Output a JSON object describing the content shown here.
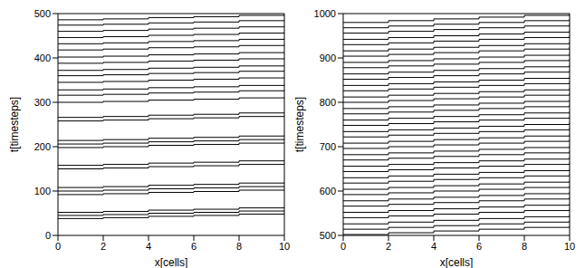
{
  "chart_data": [
    {
      "type": "line",
      "x_label": "x[cells]",
      "y_label": "t[timesteps]",
      "color": "#000000",
      "line_style": "step",
      "x": [
        0,
        2,
        4,
        6,
        8,
        10
      ],
      "xlim": [
        0,
        10
      ],
      "xticks": [
        0,
        2,
        4,
        6,
        8,
        10
      ],
      "ylim": [
        0,
        500
      ],
      "yticks": [
        0,
        100,
        200,
        300,
        400,
        500
      ],
      "series": [
        {
          "values": [
            38,
            40,
            43,
            45,
            48,
            50
          ]
        },
        {
          "values": [
            45,
            47,
            50,
            52,
            55,
            57
          ]
        },
        {
          "values": [
            52,
            54,
            57,
            59,
            62,
            64
          ]
        },
        {
          "values": [
            92,
            94,
            97,
            99,
            102,
            104
          ]
        },
        {
          "values": [
            100,
            102,
            105,
            107,
            110,
            112
          ]
        },
        {
          "values": [
            108,
            110,
            113,
            115,
            118,
            120
          ]
        },
        {
          "values": [
            150,
            152,
            155,
            157,
            160,
            162
          ]
        },
        {
          "values": [
            158,
            160,
            163,
            165,
            168,
            170
          ]
        },
        {
          "values": [
            198,
            200,
            203,
            205,
            208,
            210
          ]
        },
        {
          "values": [
            206,
            208,
            211,
            213,
            216,
            218
          ]
        },
        {
          "values": [
            214,
            216,
            219,
            221,
            224,
            226
          ]
        },
        {
          "values": [
            258,
            260,
            263,
            265,
            268,
            270
          ]
        },
        {
          "values": [
            266,
            268,
            271,
            273,
            276,
            278
          ]
        },
        {
          "values": [
            300,
            302,
            305,
            307,
            310,
            312
          ]
        },
        {
          "values": [
            316,
            318,
            321,
            323,
            326,
            328
          ]
        },
        {
          "values": [
            328,
            330,
            333,
            335,
            338,
            340
          ]
        },
        {
          "values": [
            345,
            347,
            350,
            352,
            355,
            357
          ]
        },
        {
          "values": [
            360,
            362,
            365,
            367,
            370,
            372
          ]
        },
        {
          "values": [
            372,
            374,
            377,
            379,
            382,
            384
          ]
        },
        {
          "values": [
            388,
            390,
            393,
            395,
            398,
            400
          ]
        },
        {
          "values": [
            402,
            404,
            407,
            409,
            412,
            414
          ]
        },
        {
          "values": [
            418,
            420,
            423,
            425,
            428,
            430
          ]
        },
        {
          "values": [
            432,
            434,
            437,
            439,
            442,
            444
          ]
        },
        {
          "values": [
            446,
            448,
            451,
            453,
            456,
            458
          ]
        },
        {
          "values": [
            460,
            462,
            465,
            467,
            470,
            472
          ]
        },
        {
          "values": [
            474,
            476,
            479,
            481,
            484,
            486
          ]
        },
        {
          "values": [
            486,
            488,
            491,
            493,
            496,
            498
          ]
        }
      ]
    },
    {
      "type": "line",
      "x_label": "x[cells]",
      "y_label": "t[timesteps]",
      "color": "#000000",
      "line_style": "step",
      "x": [
        0,
        2,
        4,
        6,
        8,
        10
      ],
      "xlim": [
        0,
        10
      ],
      "xticks": [
        0,
        2,
        4,
        6,
        8,
        10
      ],
      "ylim": [
        500,
        1000
      ],
      "yticks": [
        500,
        600,
        700,
        800,
        900,
        1000
      ],
      "series": [
        {
          "values": [
            502,
            506,
            510,
            514,
            518,
            522
          ]
        },
        {
          "values": [
            514,
            518,
            522,
            526,
            530,
            534
          ]
        },
        {
          "values": [
            526,
            530,
            534,
            538,
            542,
            546
          ]
        },
        {
          "values": [
            540,
            544,
            548,
            552,
            556,
            560
          ]
        },
        {
          "values": [
            552,
            556,
            560,
            564,
            568,
            572
          ]
        },
        {
          "values": [
            566,
            570,
            574,
            578,
            582,
            586
          ]
        },
        {
          "values": [
            578,
            582,
            586,
            590,
            594,
            598
          ]
        },
        {
          "values": [
            592,
            596,
            600,
            604,
            608,
            612
          ]
        },
        {
          "values": [
            604,
            608,
            612,
            616,
            620,
            624
          ]
        },
        {
          "values": [
            618,
            622,
            626,
            630,
            634,
            638
          ]
        },
        {
          "values": [
            630,
            634,
            638,
            642,
            646,
            650
          ]
        },
        {
          "values": [
            644,
            648,
            652,
            656,
            660,
            664
          ]
        },
        {
          "values": [
            656,
            660,
            664,
            668,
            672,
            676
          ]
        },
        {
          "values": [
            670,
            674,
            678,
            682,
            686,
            690
          ]
        },
        {
          "values": [
            682,
            686,
            690,
            694,
            698,
            702
          ]
        },
        {
          "values": [
            696,
            700,
            704,
            708,
            712,
            716
          ]
        },
        {
          "values": [
            708,
            712,
            716,
            720,
            724,
            728
          ]
        },
        {
          "values": [
            722,
            726,
            730,
            734,
            738,
            742
          ]
        },
        {
          "values": [
            734,
            738,
            742,
            746,
            750,
            754
          ]
        },
        {
          "values": [
            748,
            752,
            756,
            760,
            764,
            768
          ]
        },
        {
          "values": [
            760,
            764,
            768,
            772,
            776,
            780
          ]
        },
        {
          "values": [
            774,
            778,
            782,
            786,
            790,
            794
          ]
        },
        {
          "values": [
            786,
            790,
            794,
            798,
            802,
            806
          ]
        },
        {
          "values": [
            800,
            804,
            808,
            812,
            816,
            820
          ]
        },
        {
          "values": [
            812,
            816,
            820,
            824,
            828,
            832
          ]
        },
        {
          "values": [
            826,
            830,
            834,
            838,
            842,
            846
          ]
        },
        {
          "values": [
            838,
            842,
            846,
            850,
            854,
            858
          ]
        },
        {
          "values": [
            852,
            856,
            860,
            864,
            868,
            872
          ]
        },
        {
          "values": [
            864,
            868,
            872,
            876,
            880,
            884
          ]
        },
        {
          "values": [
            878,
            882,
            886,
            890,
            894,
            898
          ]
        },
        {
          "values": [
            890,
            894,
            898,
            902,
            906,
            910
          ]
        },
        {
          "values": [
            904,
            908,
            912,
            916,
            920,
            924
          ]
        },
        {
          "values": [
            916,
            920,
            924,
            928,
            932,
            936
          ]
        },
        {
          "values": [
            930,
            934,
            938,
            942,
            946,
            950
          ]
        },
        {
          "values": [
            942,
            946,
            950,
            954,
            958,
            962
          ]
        },
        {
          "values": [
            956,
            960,
            964,
            968,
            972,
            976
          ]
        },
        {
          "values": [
            968,
            972,
            976,
            980,
            984,
            988
          ]
        },
        {
          "values": [
            980,
            984,
            988,
            992,
            996,
            1000
          ]
        }
      ]
    }
  ]
}
